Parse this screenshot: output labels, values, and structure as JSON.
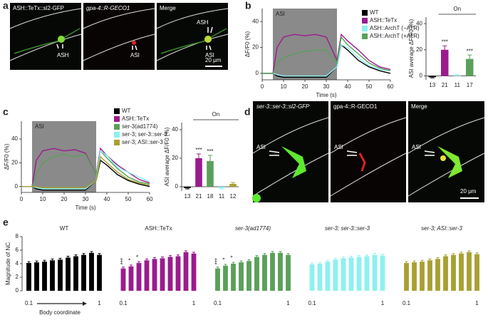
{
  "panel_letters": [
    "a",
    "b",
    "c",
    "d",
    "e"
  ],
  "images": {
    "a": {
      "titles": [
        "ASH::TeTx::sl2-GFP",
        "gpa-4::R-GECO1",
        "Merge"
      ],
      "annotations": [
        "ASH",
        "ASI",
        "ASH",
        "ASI"
      ],
      "scale_bar": "20 μm"
    },
    "d": {
      "titles": [
        "ser-3::ser-3::sl2-GFP",
        "gpa-4::R-GECO1",
        "Merge"
      ],
      "annotations": [
        "ASI",
        "ASI",
        "ASI"
      ],
      "scale_bar": "20 μm"
    }
  },
  "chart_data": [
    {
      "type": "line",
      "ylabel": "ΔF/F0 (%)",
      "xlabel": "Time (s)",
      "annotation": "ASI",
      "shade_x": [
        5,
        35
      ],
      "x": [
        0,
        5,
        7,
        10,
        15,
        20,
        25,
        30,
        35,
        37,
        40,
        45,
        50,
        55,
        60
      ],
      "series": [
        {
          "name": "WT",
          "color": "#000000",
          "values": [
            0,
            0,
            -2,
            -3,
            -3,
            -3,
            -3,
            -3,
            5,
            22,
            18,
            10,
            5,
            2,
            0
          ]
        },
        {
          "name": "ASH::TeTx",
          "color": "#9b1b8e",
          "values": [
            0,
            0,
            20,
            28,
            30,
            29,
            30,
            28,
            10,
            30,
            25,
            18,
            10,
            5,
            3
          ]
        },
        {
          "name": "ASH::ArchT (−ATR)",
          "color": "#8ef0f0",
          "values": [
            0,
            0,
            -1,
            -2,
            -2,
            -2,
            -2,
            -2,
            5,
            22,
            20,
            12,
            6,
            3,
            2
          ]
        },
        {
          "name": "ASH::ArchT (+ATR)",
          "color": "#5aa05a",
          "values": [
            0,
            0,
            8,
            12,
            15,
            17,
            18,
            18,
            8,
            28,
            22,
            15,
            8,
            4,
            2
          ]
        }
      ],
      "xlim": [
        0,
        60
      ],
      "xticks": [
        0,
        10,
        20,
        30,
        40,
        50,
        60
      ],
      "ylim": [
        -5,
        50
      ],
      "yticks": [
        0,
        20,
        40
      ]
    },
    {
      "type": "bar",
      "ylabel": "ASI average ΔF/F0 (%)",
      "annotation": "On",
      "categories": [
        "13",
        "21",
        "11",
        "17"
      ],
      "values": [
        -1,
        20,
        0.5,
        13
      ],
      "errors": [
        0.5,
        3,
        0.5,
        3
      ],
      "labels": [
        null,
        "***",
        null,
        "***"
      ],
      "colors": [
        "#000000",
        "#9b1b8e",
        "#8ef0f0",
        "#5aa05a"
      ],
      "ylim": [
        -3,
        45
      ],
      "yticks": [
        0,
        20,
        40
      ]
    },
    {
      "type": "line",
      "ylabel": "ΔF/F0 (%)",
      "xlabel": "Time (s)",
      "annotation": "ASI",
      "shade_x": [
        5,
        35
      ],
      "x": [
        0,
        5,
        7,
        10,
        15,
        20,
        25,
        30,
        35,
        37,
        40,
        45,
        50,
        55,
        60
      ],
      "series": [
        {
          "name": "WT",
          "color": "#000000",
          "values": [
            0,
            0,
            -2,
            -3,
            -3,
            -3,
            -3,
            -3,
            5,
            22,
            18,
            10,
            5,
            2,
            0
          ]
        },
        {
          "name": "ASH::TeTx",
          "color": "#9b1b8e",
          "values": [
            0,
            0,
            22,
            30,
            32,
            30,
            31,
            28,
            10,
            32,
            26,
            18,
            12,
            6,
            3
          ]
        },
        {
          "name": "ser-3(ad1774)",
          "color": "#5aa05a",
          "values": [
            0,
            0,
            10,
            20,
            25,
            27,
            25,
            27,
            10,
            30,
            24,
            15,
            8,
            4,
            2
          ]
        },
        {
          "name": "ser-3; ser-3::ser-3",
          "color": "#8ef0f0",
          "values": [
            0,
            0,
            -1,
            -2,
            -2,
            -2,
            -2,
            -2,
            5,
            30,
            26,
            16,
            12,
            8,
            4
          ]
        },
        {
          "name": "ser-3; ASI::ser-3",
          "color": "#a8a032",
          "values": [
            0,
            0,
            0,
            -1,
            -1,
            -1,
            -1,
            -1,
            5,
            25,
            20,
            12,
            6,
            3,
            1
          ]
        }
      ],
      "xlim": [
        0,
        60
      ],
      "xticks": [
        0,
        10,
        20,
        30,
        40,
        50,
        60
      ],
      "ylim": [
        -5,
        55
      ],
      "yticks": [
        0,
        20,
        40
      ]
    },
    {
      "type": "bar",
      "ylabel": "ASI average ΔF/F0 (%)",
      "annotation": "On",
      "categories": [
        "13",
        "21",
        "18",
        "11",
        "12"
      ],
      "values": [
        -1,
        20,
        18,
        -1,
        2
      ],
      "errors": [
        0.5,
        3,
        4,
        0.5,
        1
      ],
      "labels": [
        null,
        "***",
        "***",
        null,
        null
      ],
      "colors": [
        "#000000",
        "#9b1b8e",
        "#5aa05a",
        "#8ef0f0",
        "#a8a032"
      ],
      "ylim": [
        -3,
        45
      ],
      "yticks": [
        0,
        20,
        40
      ]
    },
    {
      "type": "grouped-panels",
      "ylabel": "Magnitude of NC",
      "xlabel": "Body coordinate",
      "x": [
        0.1,
        0.2,
        0.3,
        0.4,
        0.5,
        0.6,
        0.7,
        0.8,
        0.9,
        1
      ],
      "xlim": [
        0.05,
        1.05
      ],
      "xticks": [
        0.1,
        1
      ],
      "ylim": [
        0,
        8
      ],
      "yticks": [
        0,
        2,
        4,
        6,
        8
      ],
      "series": [
        {
          "name": "WT",
          "color": "#000000",
          "values": [
            4.1,
            4.2,
            4.3,
            4.5,
            4.6,
            4.9,
            5.1,
            5.3,
            5.6,
            5.3
          ],
          "errors": [
            0.2,
            0.2,
            0.2,
            0.2,
            0.2,
            0.2,
            0.2,
            0.2,
            0.2,
            0.2
          ],
          "labels": [
            null,
            null,
            null,
            null,
            null,
            null,
            null,
            null,
            null,
            null
          ]
        },
        {
          "name": "ASH::TeTx",
          "color": "#9b1b8e",
          "values": [
            3.3,
            3.6,
            4.1,
            4.5,
            4.7,
            4.8,
            5.0,
            5.1,
            5.7,
            5.5
          ],
          "errors": [
            0.2,
            0.2,
            0.2,
            0.2,
            0.2,
            0.2,
            0.2,
            0.2,
            0.2,
            0.2
          ],
          "labels": [
            "***",
            "*",
            "*",
            null,
            null,
            null,
            null,
            null,
            null,
            null
          ]
        },
        {
          "name": "ser-3(ad1774)",
          "color": "#5aa05a",
          "values": [
            3.3,
            3.7,
            4.0,
            4.2,
            4.4,
            5.0,
            5.3,
            5.6,
            5.6,
            5.3
          ],
          "errors": [
            0.2,
            0.2,
            0.2,
            0.2,
            0.2,
            0.2,
            0.2,
            0.2,
            0.2,
            0.2
          ],
          "labels": [
            "***",
            "*",
            "*",
            null,
            null,
            null,
            null,
            null,
            null,
            null
          ]
        },
        {
          "name": "ser-3; ser-3::ser-3",
          "color": "#8ef0f0",
          "values": [
            3.9,
            4.0,
            4.3,
            4.6,
            4.8,
            4.9,
            5.0,
            5.1,
            5.3,
            5.2
          ],
          "errors": [
            0.2,
            0.2,
            0.2,
            0.2,
            0.2,
            0.2,
            0.2,
            0.2,
            0.2,
            0.2
          ],
          "labels": [
            null,
            null,
            null,
            null,
            null,
            null,
            null,
            null,
            null,
            null
          ]
        },
        {
          "name": "ser-3; ASI::ser-3",
          "color": "#a8a032",
          "values": [
            4.1,
            4.2,
            4.3,
            4.5,
            4.7,
            5.1,
            5.3,
            5.5,
            5.7,
            5.4
          ],
          "errors": [
            0.2,
            0.2,
            0.2,
            0.2,
            0.2,
            0.2,
            0.2,
            0.2,
            0.2,
            0.2
          ],
          "labels": [
            null,
            null,
            null,
            null,
            null,
            null,
            null,
            null,
            null,
            null
          ]
        }
      ]
    }
  ]
}
